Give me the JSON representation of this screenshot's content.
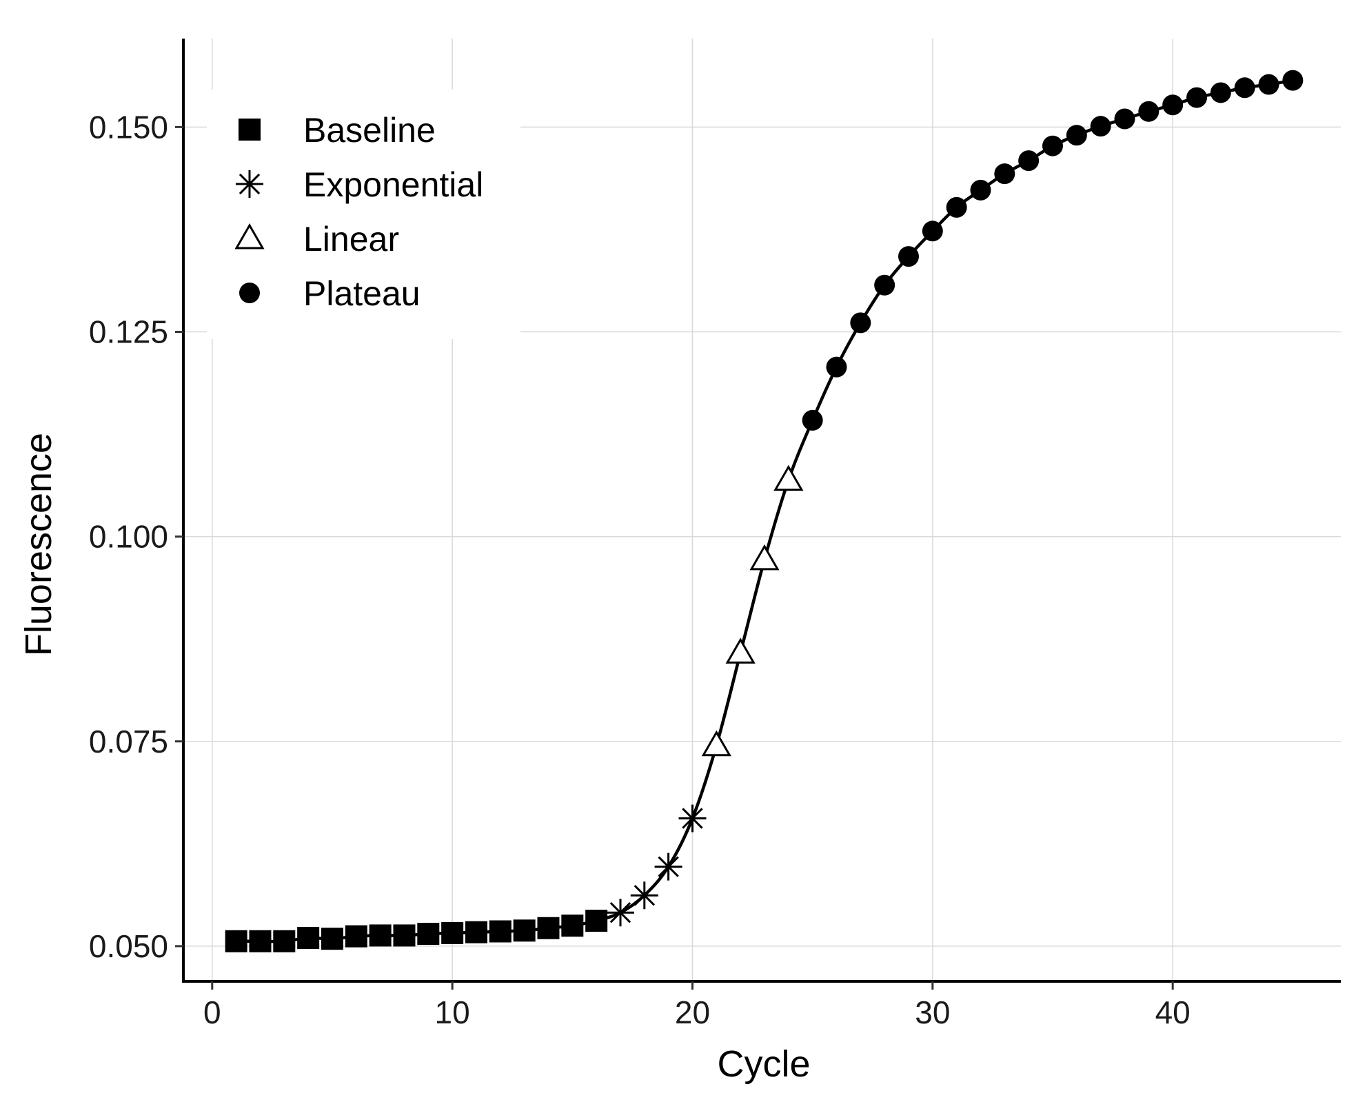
{
  "chart_data": {
    "type": "scatter",
    "title": "",
    "xlabel": "Cycle",
    "ylabel": "Fluorescence",
    "xlim": [
      -1.2,
      47
    ],
    "ylim": [
      0.0457,
      0.1608
    ],
    "x_ticks": [
      0,
      10,
      20,
      30,
      40
    ],
    "x_tick_labels": [
      "0",
      "10",
      "20",
      "30",
      "40"
    ],
    "y_ticks": [
      0.05,
      0.075,
      0.1,
      0.125,
      0.15
    ],
    "y_tick_labels": [
      "0.050",
      "0.075",
      "0.100",
      "0.125",
      "0.150"
    ],
    "grid": true,
    "legend_position": "top-left",
    "fit_line": true,
    "series": [
      {
        "name": "Baseline",
        "marker": "square",
        "x": [
          1,
          2,
          3,
          4,
          5,
          6,
          7,
          8,
          9,
          10,
          11,
          12,
          13,
          14,
          15,
          16
        ],
        "y": [
          0.0506,
          0.0506,
          0.0506,
          0.051,
          0.0509,
          0.0512,
          0.0513,
          0.0513,
          0.0515,
          0.0516,
          0.0517,
          0.0518,
          0.0519,
          0.0522,
          0.0525,
          0.0531
        ]
      },
      {
        "name": "Exponential",
        "marker": "asterisk",
        "x": [
          17,
          18,
          19,
          20
        ],
        "y": [
          0.0541,
          0.0562,
          0.0597,
          0.0656
        ]
      },
      {
        "name": "Linear",
        "marker": "triangle-open",
        "x": [
          21,
          22,
          23,
          24
        ],
        "y": [
          0.0745,
          0.0858,
          0.0972,
          0.1069
        ]
      },
      {
        "name": "Plateau",
        "marker": "circle",
        "x": [
          25,
          26,
          27,
          28,
          29,
          30,
          31,
          32,
          33,
          34,
          35,
          36,
          37,
          38,
          39,
          40,
          41,
          42,
          43,
          44,
          45
        ],
        "y": [
          0.1142,
          0.1207,
          0.1261,
          0.1307,
          0.1342,
          0.1373,
          0.1402,
          0.1423,
          0.1443,
          0.1459,
          0.1477,
          0.149,
          0.1501,
          0.151,
          0.1519,
          0.1527,
          0.1536,
          0.1542,
          0.1548,
          0.1552,
          0.1557
        ]
      }
    ]
  }
}
